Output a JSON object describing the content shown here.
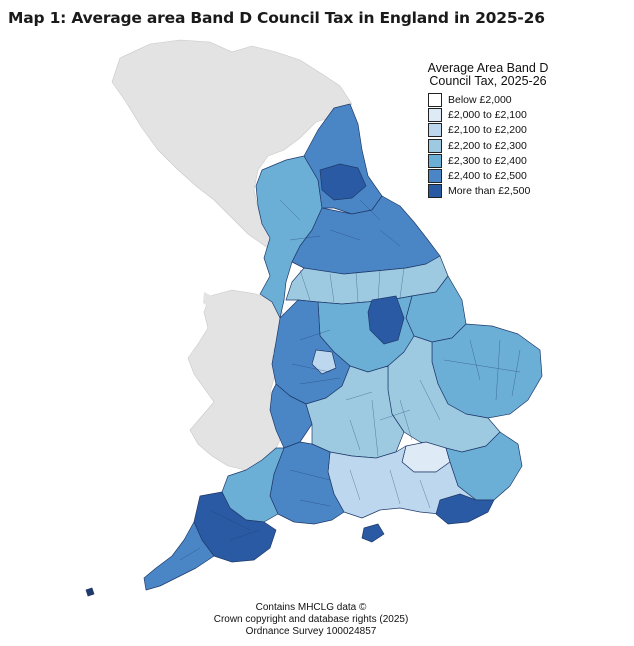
{
  "title": "Map 1: Average area Band D Council Tax in England in 2025-26",
  "legend": {
    "title_line1": "Average Area Band D",
    "title_line2": "Council Tax, 2025-26",
    "items": [
      {
        "label": "Below £2,000",
        "color": "#ffffff"
      },
      {
        "label": "£2,000 to £2,100",
        "color": "#deebf7"
      },
      {
        "label": "£2,100 to £2,200",
        "color": "#bdd7ee"
      },
      {
        "label": "£2,200 to £2,300",
        "color": "#9ecae1"
      },
      {
        "label": "£2,300 to £2,400",
        "color": "#6baed6"
      },
      {
        "label": "£2,400 to £2,500",
        "color": "#4a86c5"
      },
      {
        "label": "More than £2,500",
        "color": "#2a5aa3"
      }
    ]
  },
  "credits": {
    "line1": "Contains MHCLG data ©",
    "line2": "Crown copyright and database rights (2025)",
    "line3": "Ordnance Survey 100024857"
  },
  "colors": {
    "non_england_land": "#e3e3e3",
    "boundary": "#1f3a6b"
  }
}
